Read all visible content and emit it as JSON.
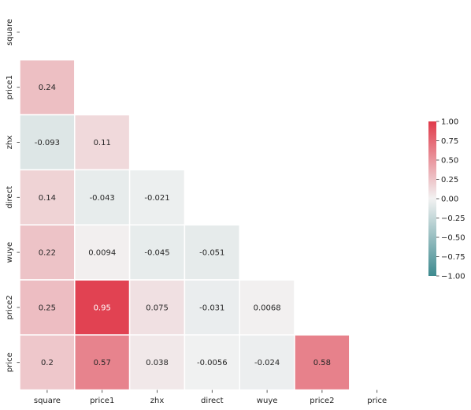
{
  "chart_data": {
    "type": "heatmap",
    "title": "",
    "xlabel": "",
    "ylabel": "",
    "x_labels": [
      "square",
      "price1",
      "zhx",
      "direct",
      "wuye",
      "price2",
      "price"
    ],
    "y_labels": [
      "square",
      "price1",
      "zhx",
      "direct",
      "wuye",
      "price2",
      "price"
    ],
    "mask": "upper-triangle-including-diagonal",
    "matrix": [
      [
        null,
        null,
        null,
        null,
        null,
        null,
        null
      ],
      [
        0.24,
        null,
        null,
        null,
        null,
        null,
        null
      ],
      [
        -0.093,
        0.11,
        null,
        null,
        null,
        null,
        null
      ],
      [
        0.14,
        -0.043,
        -0.021,
        null,
        null,
        null,
        null
      ],
      [
        0.22,
        0.0094,
        -0.045,
        -0.051,
        null,
        null,
        null
      ],
      [
        0.25,
        0.95,
        0.075,
        -0.031,
        0.0068,
        null,
        null
      ],
      [
        0.2,
        0.57,
        0.038,
        -0.0056,
        -0.024,
        0.58,
        null
      ]
    ],
    "value_labels": [
      [
        null,
        null,
        null,
        null,
        null,
        null,
        null
      ],
      [
        "0.24",
        null,
        null,
        null,
        null,
        null,
        null
      ],
      [
        "-0.093",
        "0.11",
        null,
        null,
        null,
        null,
        null
      ],
      [
        "0.14",
        "-0.043",
        "-0.021",
        null,
        null,
        null,
        null
      ],
      [
        "0.22",
        "0.0094",
        "-0.045",
        "-0.051",
        null,
        null,
        null
      ],
      [
        "0.25",
        "0.95",
        "0.075",
        "-0.031",
        "0.0068",
        null,
        null
      ],
      [
        "0.2",
        "0.57",
        "0.038",
        "-0.0056",
        "-0.024",
        "0.58",
        null
      ]
    ],
    "colorbar": {
      "range": [
        -1.0,
        1.0
      ],
      "ticks": [
        "1.00",
        "0.75",
        "0.50",
        "0.25",
        "0.00",
        "−0.25",
        "−0.50",
        "−0.75",
        "−1.00"
      ],
      "tick_values": [
        1.0,
        0.75,
        0.5,
        0.25,
        0.0,
        -0.25,
        -0.5,
        -0.75,
        -1.0
      ],
      "colors": {
        "negative": "#3d8a8f",
        "neutral": "#f2f2f2",
        "positive": "#e03a4a"
      }
    }
  }
}
